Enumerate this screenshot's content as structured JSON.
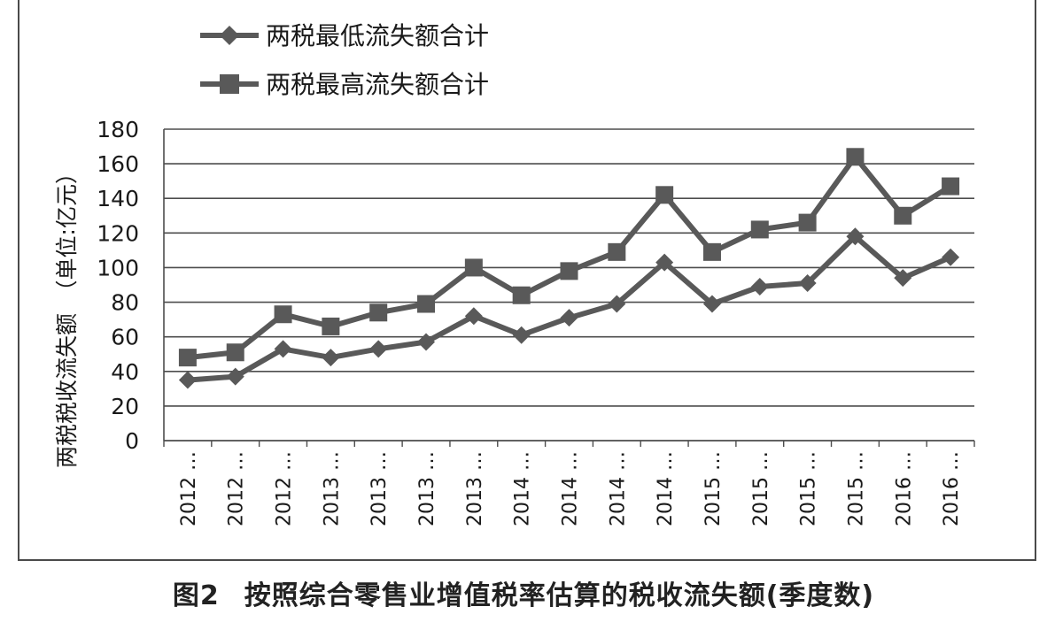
{
  "chart_data": {
    "type": "line",
    "categories": [
      "2012 …",
      "2012 …",
      "2012 …",
      "2013 …",
      "2013 …",
      "2013 …",
      "2013 …",
      "2014 …",
      "2014 …",
      "2014 …",
      "2014 …",
      "2015 …",
      "2015 …",
      "2015 …",
      "2015 …",
      "2016 …",
      "2016 …"
    ],
    "series": [
      {
        "name": "两税最低流失额合计",
        "marker": "diamond",
        "values": [
          35,
          37,
          53,
          48,
          53,
          57,
          72,
          61,
          71,
          79,
          103,
          79,
          89,
          91,
          118,
          94,
          106
        ]
      },
      {
        "name": "两税最高流失额合计",
        "marker": "square",
        "values": [
          48,
          51,
          73,
          66,
          74,
          79,
          100,
          84,
          98,
          109,
          142,
          109,
          122,
          126,
          164,
          130,
          147
        ]
      }
    ],
    "ylabel": "两税税收流失额　（单位:亿元）",
    "ylim": [
      0,
      180
    ],
    "yticks": [
      0,
      20,
      40,
      60,
      80,
      100,
      120,
      140,
      160,
      180
    ],
    "grid": true,
    "legend_position": "top-left",
    "line_color": "#595959"
  },
  "caption": {
    "figure_number": "图2",
    "text": "按照综合零售业增值税率估算的税收流失额(季度数)"
  }
}
